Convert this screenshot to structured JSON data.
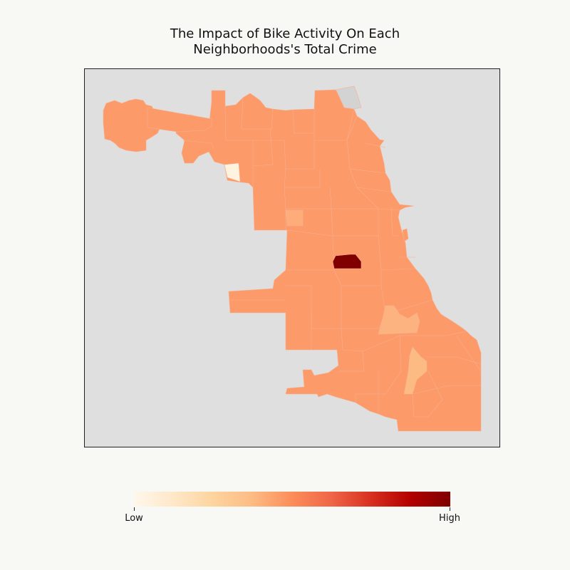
{
  "map": {
    "title_line1": "The Impact of Bike Activity On Each",
    "title_line2": "Neighborhoods's Total Crime",
    "region": "Chicago",
    "background_color": "#dfdfdf",
    "no_data_color": "#d3d3d3",
    "base_fill_color": "#fc9a6a",
    "colormap": "OrRd",
    "highlighted_areas": [
      {
        "level": "highest",
        "color": "#800000"
      },
      {
        "level": "lowest",
        "color": "#fff3e0"
      },
      {
        "level": "below-average",
        "color": "#fdb37f"
      },
      {
        "level": "below-average",
        "color": "#fdbb84"
      }
    ]
  },
  "legend": {
    "low_label": "Low",
    "high_label": "High",
    "gradient_stops": [
      "#fff7ec",
      "#fee8c8",
      "#fdd49e",
      "#fdbb84",
      "#fc8d59",
      "#ef6548",
      "#d7301f",
      "#b30000",
      "#7f0000"
    ]
  }
}
